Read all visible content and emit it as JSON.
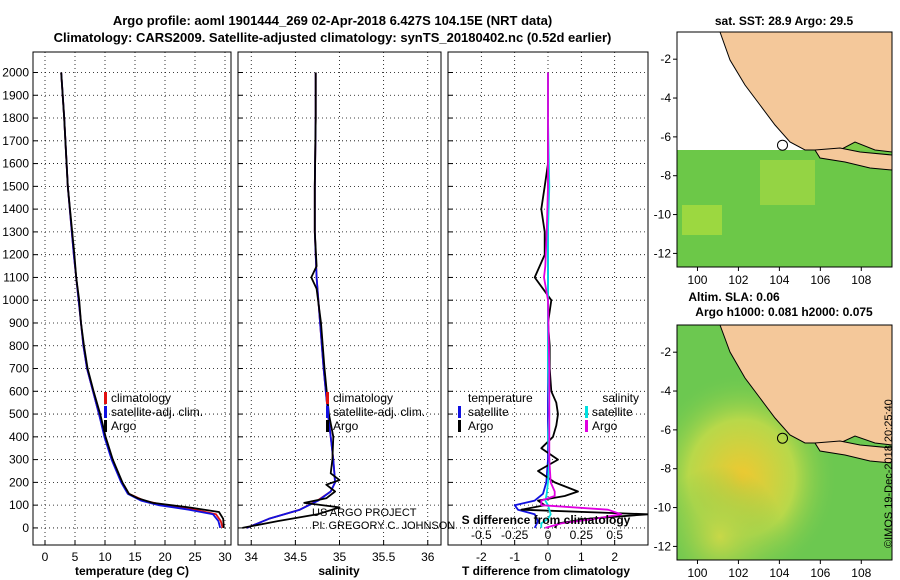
{
  "header": {
    "line1": "Argo profile: aoml 1901444_269 02-Apr-2018 6.427S 104.15E (NRT data)",
    "line2": "Climatology: CARS2009. Satellite-adjusted climatology: synTS_20180402.nc (0.52d earlier)"
  },
  "colors": {
    "climatology": "#e01010",
    "satellite": "#1010e0",
    "argo": "#000000",
    "sat_salinity": "#00e0e0",
    "argo_salinity_diff": "#e000e0",
    "land": "#f4c89a",
    "map_green": "#50c850"
  },
  "chart_data": [
    {
      "type": "line",
      "xlabel": "temperature (deg C)",
      "x_ticks": [
        0,
        5,
        10,
        15,
        20,
        25,
        30
      ],
      "xlim": [
        -2,
        31
      ],
      "y_ticks": [
        0,
        100,
        200,
        300,
        400,
        500,
        600,
        700,
        800,
        900,
        1000,
        1100,
        1200,
        1300,
        1400,
        1500,
        1600,
        1700,
        1800,
        1900,
        2000
      ],
      "ylim": [
        2090,
        -75
      ],
      "legend": [
        "climatology",
        "satellite-adj. clim.",
        "Argo"
      ],
      "series": [
        {
          "name": "climatology",
          "color": "red",
          "y": [
            0,
            30,
            60,
            80,
            100,
            120,
            150,
            200,
            300,
            400,
            500,
            600,
            700,
            800,
            1000,
            1200,
            1500,
            1800,
            2000
          ],
          "x": [
            29.6,
            29.3,
            28.5,
            25.0,
            20.0,
            16.5,
            14.0,
            12.8,
            11.2,
            10.0,
            9.0,
            8.0,
            7.0,
            6.4,
            5.6,
            4.8,
            3.8,
            3.2,
            2.7
          ]
        },
        {
          "name": "satellite-adj. clim.",
          "color": "blue",
          "y": [
            0,
            30,
            60,
            80,
            100,
            120,
            150,
            200,
            300,
            400,
            500,
            600,
            700,
            800,
            1000,
            1200,
            1500,
            1800,
            2000
          ],
          "x": [
            29.2,
            28.9,
            28.0,
            24.0,
            19.0,
            16.0,
            13.8,
            12.7,
            11.1,
            9.9,
            9.0,
            8.0,
            7.0,
            6.4,
            5.6,
            4.8,
            3.8,
            3.2,
            2.7
          ]
        },
        {
          "name": "Argo",
          "color": "black",
          "y": [
            0,
            40,
            70,
            90,
            110,
            130,
            150,
            200,
            300,
            400,
            500,
            600,
            700,
            800,
            900,
            1000,
            1100,
            1200,
            1500,
            1800,
            2000
          ],
          "x": [
            29.8,
            29.7,
            29.0,
            24.0,
            18.0,
            15.5,
            14.0,
            12.9,
            11.3,
            10.1,
            9.2,
            8.1,
            7.1,
            6.5,
            6.0,
            5.7,
            5.2,
            4.9,
            3.8,
            3.2,
            2.7
          ]
        }
      ]
    },
    {
      "type": "line",
      "xlabel": "salinity",
      "x_ticks": [
        34,
        34.5,
        35,
        35.5,
        36
      ],
      "xlim": [
        33.85,
        36.15
      ],
      "ylim": [
        2090,
        -75
      ],
      "legend": [
        "climatology",
        "satellite-adj. clim.",
        "Argo"
      ],
      "series": [
        {
          "name": "climatology",
          "color": "red",
          "y": [
            0,
            40,
            80,
            120,
            160,
            200,
            300,
            400,
            500,
            700,
            900,
            1100,
            1300,
            1500,
            1800,
            2000
          ],
          "x": [
            33.95,
            34.2,
            34.55,
            34.75,
            34.9,
            34.95,
            34.93,
            34.9,
            34.87,
            34.82,
            34.78,
            34.74,
            34.72,
            34.72,
            34.73,
            34.73
          ]
        },
        {
          "name": "satellite-adj. clim.",
          "color": "blue",
          "y": [
            0,
            40,
            80,
            120,
            160,
            200,
            300,
            400,
            500,
            700,
            900,
            1100,
            1300,
            1500,
            1800,
            2000
          ],
          "x": [
            33.95,
            34.2,
            34.55,
            34.76,
            34.9,
            34.95,
            34.93,
            34.9,
            34.87,
            34.82,
            34.78,
            34.74,
            34.72,
            34.72,
            34.73,
            34.73
          ]
        },
        {
          "name": "Argo",
          "color": "black",
          "y": [
            0,
            30,
            60,
            90,
            110,
            130,
            160,
            190,
            210,
            240,
            300,
            400,
            500,
            700,
            900,
            1050,
            1100,
            1150,
            1300,
            1500,
            1800,
            2000
          ],
          "x": [
            33.9,
            34.3,
            34.75,
            35.0,
            34.6,
            34.85,
            34.95,
            34.85,
            35.0,
            34.9,
            34.92,
            34.93,
            34.88,
            34.83,
            34.79,
            34.74,
            34.68,
            34.74,
            34.72,
            34.72,
            34.73,
            34.73
          ]
        }
      ],
      "annotations": [
        "US ARGO PROJECT",
        "PI: GREGORY C. JOHNSON"
      ]
    },
    {
      "type": "line",
      "xlabel": "T difference from climatology",
      "xlabel_top": "S difference from climatology",
      "x_ticks": [
        -2,
        -1,
        0,
        1,
        2
      ],
      "x_ticks_top": [
        -0.5,
        -0.25,
        0,
        0.25,
        0.5
      ],
      "xlim": [
        -3,
        3
      ],
      "ylim": [
        2090,
        -75
      ],
      "legend_temperature": [
        "temperature",
        "satellite",
        "Argo"
      ],
      "legend_salinity": [
        "salinity",
        "satellite",
        "Argo"
      ],
      "series": [
        {
          "name": "satellite",
          "color": "blue",
          "y": [
            0,
            30,
            60,
            80,
            100,
            120,
            150,
            200,
            300,
            500,
            800,
            1100,
            1500,
            2000
          ],
          "x": [
            -0.4,
            -0.3,
            -0.4,
            -0.9,
            -1.0,
            -0.4,
            -0.15,
            -0.05,
            0.0,
            0.0,
            0.0,
            0.0,
            0.0,
            0.0
          ]
        },
        {
          "name": "Argo",
          "color": "black",
          "y": [
            0,
            20,
            40,
            60,
            80,
            100,
            120,
            140,
            160,
            200,
            250,
            300,
            350,
            400,
            450,
            500,
            550,
            600,
            700,
            800,
            900,
            1000,
            1100,
            1200,
            1300,
            1400,
            1500,
            1600,
            1800,
            2000
          ],
          "x": [
            0.2,
            0.3,
            1.2,
            3.0,
            -0.8,
            -0.1,
            -0.3,
            0.5,
            0.9,
            0.2,
            -0.3,
            0.3,
            -0.2,
            0.15,
            0.25,
            0.3,
            0.25,
            0.1,
            0.05,
            0.05,
            0.0,
            0.1,
            -0.4,
            -0.1,
            -0.1,
            -0.2,
            -0.1,
            0.0,
            0.0,
            0.0
          ]
        },
        {
          "name": "satellite S",
          "color": "cyan",
          "y": [
            0,
            20,
            40,
            60,
            80,
            100,
            120,
            150,
            200,
            300,
            400,
            500,
            700,
            1000,
            1300,
            1500,
            1800,
            2000
          ],
          "x": [
            -0.05,
            -0.05,
            0.0,
            0.02,
            0.01,
            0.0,
            -0.02,
            -0.01,
            0.0,
            0.01,
            0.0,
            0.01,
            0.0,
            0.0,
            0.0,
            0.01,
            0.0,
            0.0
          ]
        },
        {
          "name": "Argo S",
          "color": "magenta",
          "y": [
            0,
            20,
            40,
            60,
            80,
            100,
            120,
            140,
            160,
            200,
            300,
            500,
            700,
            1000,
            1100,
            1150,
            1300,
            1500,
            1800,
            2000
          ],
          "x": [
            -0.02,
            0.1,
            0.35,
            0.55,
            0.45,
            -0.05,
            -0.05,
            0.05,
            0.05,
            0.02,
            0.01,
            0.01,
            0.01,
            0.0,
            -0.03,
            -0.02,
            -0.01,
            0.0,
            0.0,
            0.0
          ]
        }
      ]
    }
  ],
  "maps": [
    {
      "title": "sat. SST: 28.9 Argo: 29.5",
      "x_ticks": [
        100,
        102,
        104,
        106,
        108
      ],
      "y_ticks": [
        -2,
        -4,
        -6,
        -8,
        -10,
        -12
      ],
      "xlim": [
        99,
        109.5
      ],
      "ylim": [
        -12.7,
        -0.6
      ]
    },
    {
      "title_line1": "Altim. SLA: 0.06",
      "title_line2": "Argo h1000: 0.081 h2000: 0.075",
      "x_ticks": [
        100,
        102,
        104,
        106,
        108
      ],
      "y_ticks": [
        -2,
        -4,
        -6,
        -8,
        -10,
        -12
      ],
      "xlim": [
        99,
        109.5
      ],
      "ylim": [
        -12.7,
        -0.6
      ]
    }
  ],
  "argo_position": {
    "lon": 104.15,
    "lat": -6.427
  },
  "credit": "©IMOS 19-Dec-2018 20:25:40"
}
